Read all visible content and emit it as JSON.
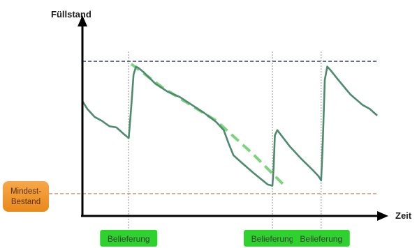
{
  "chart_data": {
    "type": "line",
    "ylabel": "Füllstand",
    "xlabel": "Zeit",
    "max_level": 100,
    "min_level": 0,
    "min_label_lines": [
      "Mindest-",
      "Bestand"
    ],
    "deliveries": [
      {
        "x": 19,
        "label": "Belieferung"
      },
      {
        "x": 78,
        "label": "Belieferung"
      },
      {
        "x": 98,
        "label": "Belieferung"
      }
    ],
    "series": [
      {
        "values": [
          [
            0,
            70
          ],
          [
            2,
            64
          ],
          [
            5,
            58
          ],
          [
            8,
            55
          ],
          [
            11,
            51
          ],
          [
            14,
            50
          ],
          [
            17,
            45
          ],
          [
            19,
            42
          ],
          [
            20,
            65
          ],
          [
            21,
            90
          ],
          [
            22,
            96
          ],
          [
            23,
            95
          ],
          [
            25,
            92
          ],
          [
            30,
            83
          ],
          [
            35,
            77
          ],
          [
            40,
            73
          ],
          [
            45,
            67
          ],
          [
            50,
            61
          ],
          [
            55,
            54
          ],
          [
            58,
            48
          ],
          [
            60,
            38
          ],
          [
            62,
            29
          ],
          [
            65,
            24
          ],
          [
            70,
            16
          ],
          [
            74,
            10
          ],
          [
            76,
            7
          ],
          [
            78,
            6
          ],
          [
            78.5,
            20
          ],
          [
            79,
            44
          ],
          [
            80,
            48
          ],
          [
            85,
            36
          ],
          [
            90,
            26
          ],
          [
            95,
            17
          ],
          [
            97,
            13
          ],
          [
            98,
            10
          ],
          [
            98.7,
            40
          ],
          [
            99.5,
            86
          ],
          [
            100.5,
            96
          ],
          [
            102,
            93
          ],
          [
            105,
            86
          ],
          [
            110,
            75
          ],
          [
            115,
            67
          ],
          [
            118,
            64
          ],
          [
            121,
            59
          ]
        ],
        "color": "#4e8a6e"
      },
      {
        "values": [
          [
            20,
            98
          ],
          [
            33,
            80
          ],
          [
            55,
            55
          ],
          [
            70,
            30
          ],
          [
            83,
            6
          ]
        ],
        "color": "#66cc66",
        "style": "dashed-trend"
      }
    ],
    "xlim": [
      0,
      121
    ],
    "ylim": [
      0,
      100
    ]
  },
  "colors": {
    "axis": "#000000",
    "max_line": "#2f3a80",
    "min_line": "#d4926a",
    "delivery_line": "#8c8c8c",
    "badge_bg": "#2ed12e",
    "min_badge_bg": "#f0951e"
  }
}
